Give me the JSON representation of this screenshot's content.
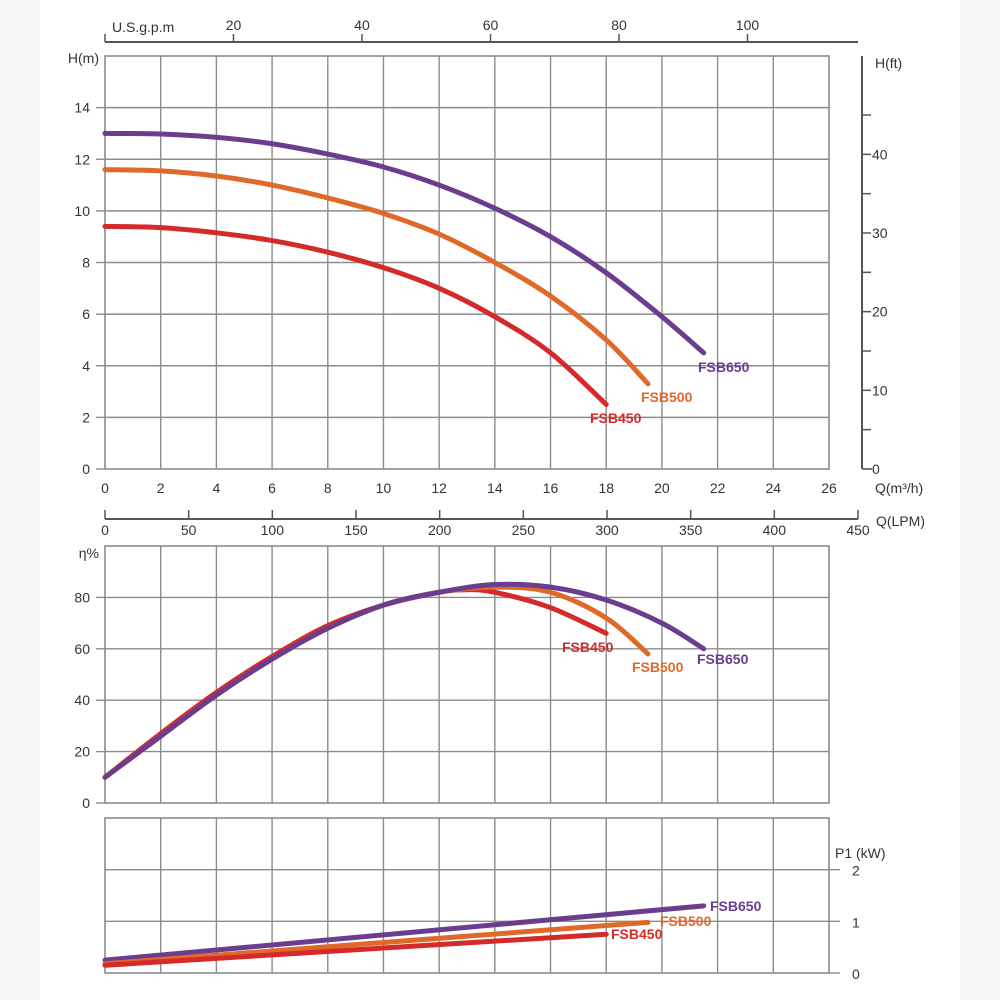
{
  "chart_data": [
    {
      "type": "line",
      "title": "",
      "xlabel": "Q(m³/h)",
      "ylabel": "H(m)",
      "ylabel_right": "H(ft)",
      "xlim": [
        0,
        26
      ],
      "ylim": [
        0,
        16
      ],
      "x_ticks": [
        "0",
        "2",
        "4",
        "6",
        "8",
        "10",
        "12",
        "14",
        "16",
        "18",
        "20",
        "22",
        "24",
        "26"
      ],
      "y_ticks": [
        "0",
        "2",
        "4",
        "6",
        "8",
        "10",
        "12",
        "14"
      ],
      "y_right_ticks": [
        "0",
        "10",
        "20",
        "30",
        "40"
      ],
      "y_right_lim": [
        0,
        52.5
      ],
      "top_axis": {
        "label": "U.S.g.p.m",
        "ticks": [
          "20",
          "40",
          "60",
          "80",
          "100"
        ],
        "lim": [
          0,
          117.2
        ]
      },
      "bottom_axis": {
        "label": "Q(LPM)",
        "ticks": [
          "0",
          "50",
          "100",
          "150",
          "200",
          "250",
          "300",
          "350",
          "400",
          "450"
        ],
        "lim": [
          0,
          450
        ]
      },
      "grid": true,
      "series": [
        {
          "name": "FSB650",
          "color": "#6a3d8f",
          "x": [
            0,
            2,
            4,
            6,
            8,
            10,
            12,
            14,
            16,
            18,
            20,
            21.5
          ],
          "y": [
            13.0,
            12.98,
            12.85,
            12.6,
            12.2,
            11.7,
            11.0,
            10.1,
            9.0,
            7.6,
            5.9,
            4.5
          ]
        },
        {
          "name": "FSB500",
          "color": "#e0692a",
          "x": [
            0,
            2,
            4,
            6,
            8,
            10,
            12,
            14,
            16,
            18,
            19.5
          ],
          "y": [
            11.6,
            11.55,
            11.35,
            11.0,
            10.5,
            9.9,
            9.1,
            8.0,
            6.7,
            5.0,
            3.3
          ]
        },
        {
          "name": "FSB450",
          "color": "#d42a2a",
          "x": [
            0,
            2,
            4,
            6,
            8,
            10,
            12,
            14,
            16,
            18
          ],
          "y": [
            9.4,
            9.35,
            9.15,
            8.85,
            8.4,
            7.8,
            7.0,
            5.9,
            4.5,
            2.5
          ]
        }
      ]
    },
    {
      "type": "line",
      "title": "",
      "xlabel": "",
      "ylabel": "η%",
      "xlim": [
        0,
        26
      ],
      "ylim": [
        0,
        100
      ],
      "y_ticks": [
        "0",
        "20",
        "40",
        "60",
        "80"
      ],
      "grid": true,
      "series": [
        {
          "name": "FSB450",
          "color": "#d42a2a",
          "x": [
            0,
            2,
            4,
            6,
            8,
            10,
            12,
            13,
            14,
            16,
            18
          ],
          "y": [
            10,
            27,
            43,
            57,
            69,
            77,
            82,
            83,
            82,
            76,
            66
          ]
        },
        {
          "name": "FSB500",
          "color": "#e0692a",
          "x": [
            0,
            2,
            4,
            6,
            8,
            10,
            12,
            14,
            16,
            18,
            19.5
          ],
          "y": [
            10,
            26,
            42,
            56,
            68,
            77,
            82,
            84,
            82,
            72,
            58
          ]
        },
        {
          "name": "FSB650",
          "color": "#6a3d8f",
          "x": [
            0,
            2,
            4,
            6,
            8,
            10,
            12,
            14,
            16,
            18,
            20,
            21.5
          ],
          "y": [
            10,
            26,
            42,
            56,
            68,
            77,
            82,
            85,
            84,
            79,
            70,
            60
          ]
        }
      ]
    },
    {
      "type": "line",
      "title": "",
      "xlabel": "",
      "ylabel": "P1 (kW)",
      "xlim": [
        0,
        26
      ],
      "ylim": [
        0,
        3
      ],
      "y_ticks": [
        "0",
        "1",
        "2"
      ],
      "grid": true,
      "series": [
        {
          "name": "FSB650",
          "color": "#6a3d8f",
          "x": [
            0,
            21.5
          ],
          "y": [
            0.25,
            1.3
          ]
        },
        {
          "name": "FSB500",
          "color": "#e0692a",
          "x": [
            0,
            19.5
          ],
          "y": [
            0.18,
            0.98
          ]
        },
        {
          "name": "FSB450",
          "color": "#d42a2a",
          "x": [
            0,
            18
          ],
          "y": [
            0.15,
            0.75
          ]
        }
      ]
    }
  ]
}
